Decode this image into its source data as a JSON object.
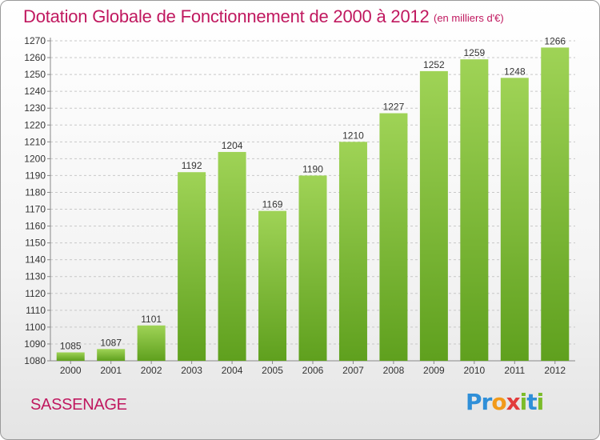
{
  "header": {
    "title": "Dotation Globale de Fonctionnement de 2000 à 2012",
    "subtitle": "(en milliers d'€)"
  },
  "footer": {
    "city": "SASSENAGE",
    "logo": {
      "parts": [
        {
          "text": "Pr",
          "color": "#2f8fd8"
        },
        {
          "text": "o",
          "color": "#f29a1a"
        },
        {
          "text": "x",
          "color": "#e23b3b"
        },
        {
          "text": "i",
          "color": "#7cbc2a"
        },
        {
          "text": "t",
          "color": "#2f8fd8"
        },
        {
          "text": "i",
          "color": "#7cbc2a"
        }
      ]
    }
  },
  "colors": {
    "bar_top": "#9fd356",
    "bar_bottom": "#5fa01e",
    "grid": "#c8c8c8",
    "axis": "#888888"
  },
  "chart_data": {
    "type": "bar",
    "title": "Dotation Globale de Fonctionnement de 2000 à 2012",
    "subtitle": "(en milliers d'€)",
    "xlabel": "",
    "ylabel": "",
    "categories": [
      "2000",
      "2001",
      "2002",
      "2003",
      "2004",
      "2005",
      "2006",
      "2007",
      "2008",
      "2009",
      "2010",
      "2011",
      "2012"
    ],
    "values": [
      1085,
      1087,
      1101,
      1192,
      1204,
      1169,
      1190,
      1210,
      1227,
      1252,
      1259,
      1248,
      1266
    ],
    "ylim": [
      1080,
      1270
    ],
    "yticks": [
      1080,
      1090,
      1100,
      1110,
      1120,
      1130,
      1140,
      1150,
      1160,
      1170,
      1180,
      1190,
      1200,
      1210,
      1220,
      1230,
      1240,
      1250,
      1260,
      1270
    ],
    "grid": true,
    "legend": "none"
  }
}
